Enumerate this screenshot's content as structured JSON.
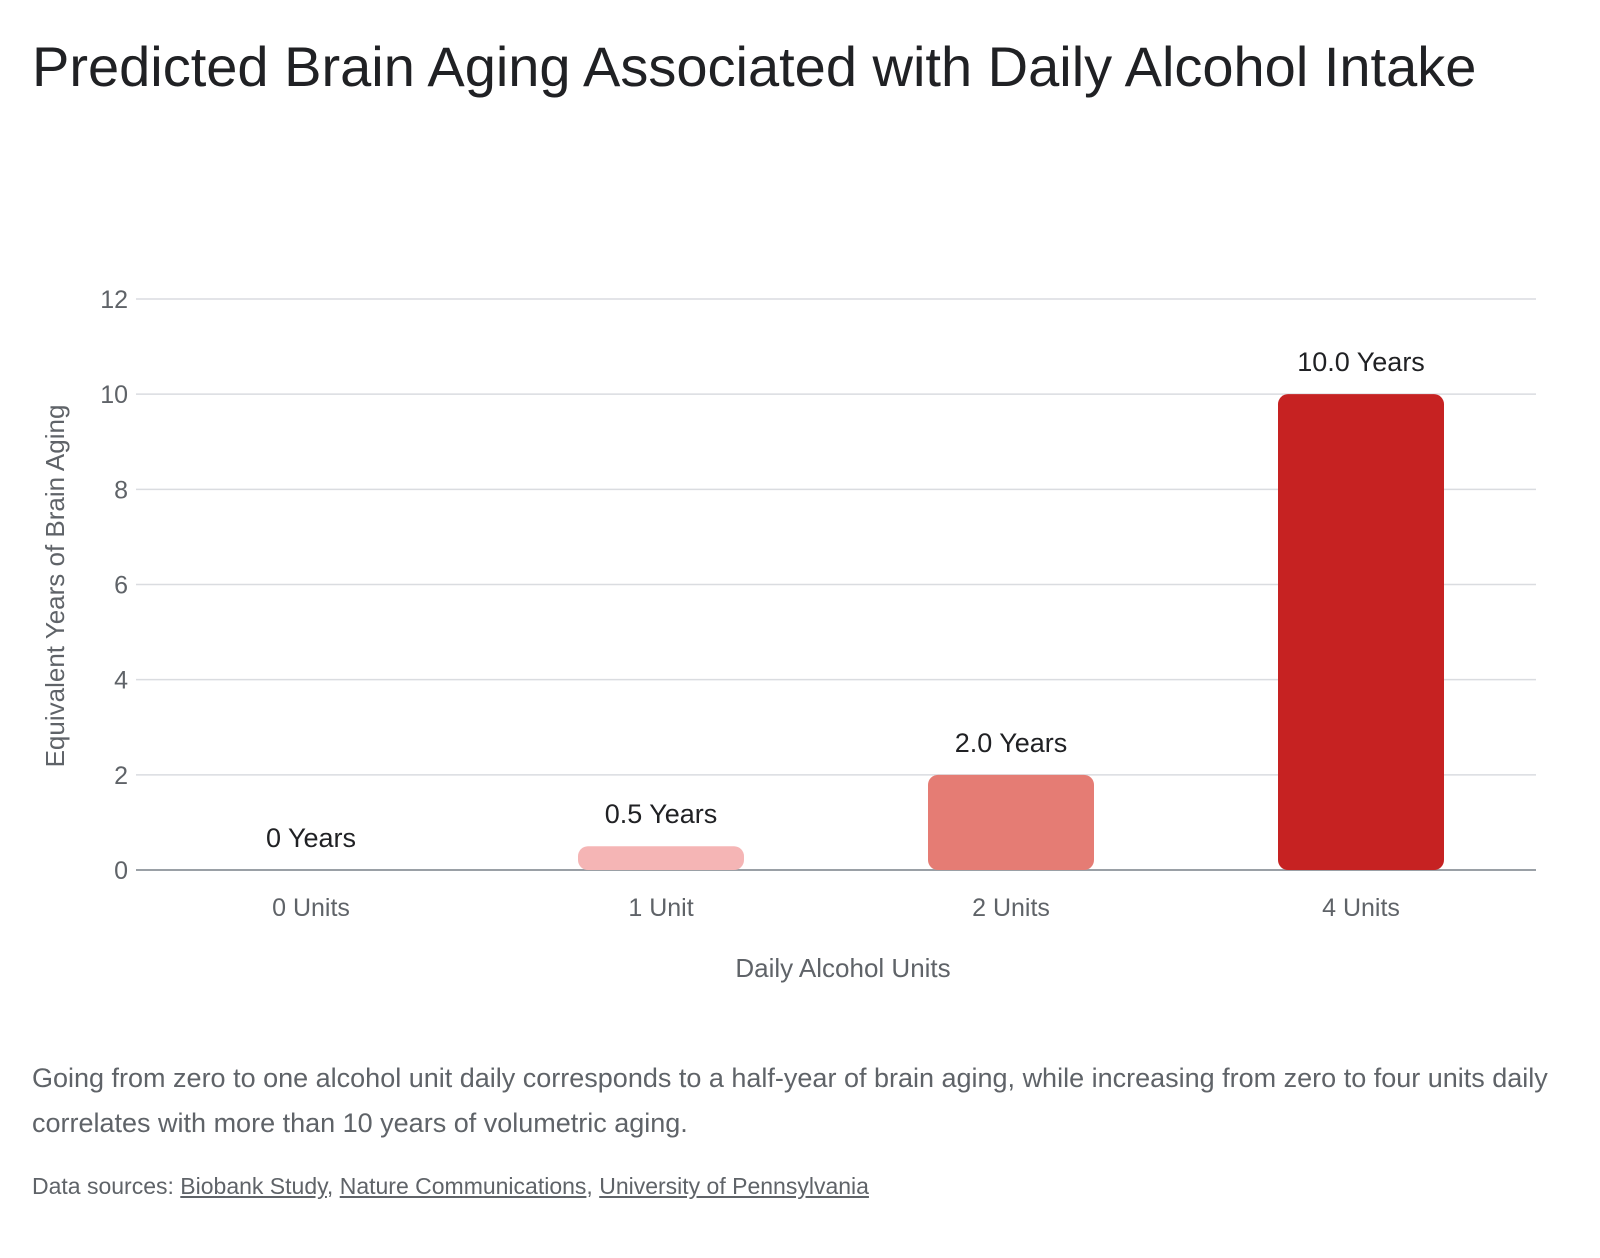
{
  "chart_data": {
    "type": "bar",
    "title": "Predicted Brain Aging Associated with Daily Alcohol Intake",
    "xlabel": "Daily Alcohol Units",
    "ylabel": "Equivalent Years of Brain Aging",
    "categories": [
      "0 Units",
      "1 Unit",
      "2 Units",
      "4 Units"
    ],
    "values": [
      0,
      0.5,
      2.0,
      10.0
    ],
    "data_labels": [
      "0 Years",
      "0.5 Years",
      "2.0 Years",
      "10.0 Years"
    ],
    "bar_colors": [
      "#f5b5b5",
      "#f5b5b5",
      "#e57c74",
      "#c62222"
    ],
    "ylim": [
      0,
      12
    ],
    "yticks": [
      0,
      2,
      4,
      6,
      8,
      10,
      12
    ],
    "grid": true,
    "legend": "none"
  },
  "description": "Going from zero to one alcohol unit daily corresponds to a half-year of brain aging, while increasing from zero to four units daily correlates with more than 10 years of volumetric aging.",
  "sources": {
    "prefix": "Data sources:",
    "links": [
      "Biobank Study",
      "Nature Communications",
      "University of Pennsylvania"
    ]
  },
  "colors": {
    "gridline": "#dadce0",
    "axis_text": "#5f6368",
    "label_text": "#202124"
  }
}
